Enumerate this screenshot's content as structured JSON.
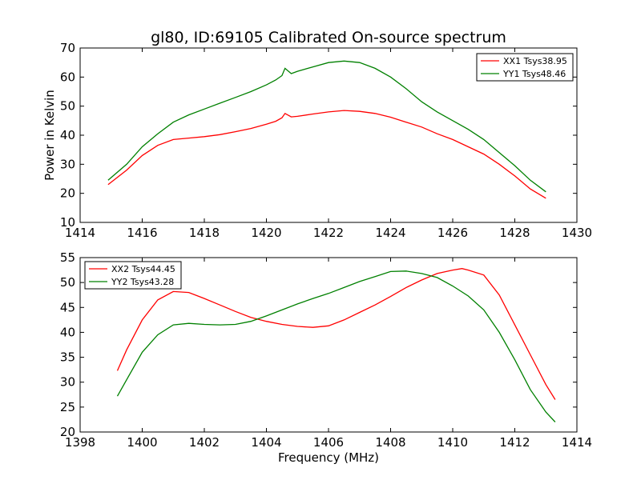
{
  "chart_data": [
    {
      "type": "line",
      "title": "gl80, ID:69105 Calibrated On-source spectrum",
      "xlabel": "",
      "ylabel": "Power in Kelvin",
      "xlim": [
        1414,
        1430
      ],
      "ylim": [
        10,
        70
      ],
      "xticks": [
        1414,
        1416,
        1418,
        1420,
        1422,
        1424,
        1426,
        1428,
        1430
      ],
      "yticks": [
        10,
        20,
        30,
        40,
        50,
        60,
        70
      ],
      "legend": "top-right",
      "series": [
        {
          "name": "XX1 Tsys38.95",
          "color": "#ff0000",
          "x": [
            1414.9,
            1415.5,
            1416.0,
            1416.5,
            1417.0,
            1417.5,
            1418.0,
            1418.5,
            1419.0,
            1419.5,
            1420.0,
            1420.3,
            1420.5,
            1420.6,
            1420.8,
            1421.0,
            1421.5,
            1422.0,
            1422.5,
            1423.0,
            1423.5,
            1424.0,
            1424.5,
            1425.0,
            1425.5,
            1426.0,
            1426.5,
            1427.0,
            1427.5,
            1428.0,
            1428.5,
            1429.0
          ],
          "y": [
            23,
            28,
            33,
            36.5,
            38.5,
            39,
            39.5,
            40.2,
            41.2,
            42.3,
            43.8,
            44.8,
            46,
            47.5,
            46.3,
            46.5,
            47.3,
            48,
            48.5,
            48.2,
            47.5,
            46.2,
            44.5,
            42.8,
            40.5,
            38.5,
            36,
            33.5,
            30,
            26,
            21.5,
            18.3
          ]
        },
        {
          "name": "YY1 Tsys48.46",
          "color": "#008000",
          "x": [
            1414.9,
            1415.5,
            1416.0,
            1416.5,
            1417.0,
            1417.5,
            1418.0,
            1418.5,
            1419.0,
            1419.5,
            1420.0,
            1420.3,
            1420.5,
            1420.6,
            1420.8,
            1421.0,
            1421.5,
            1422.0,
            1422.5,
            1423.0,
            1423.5,
            1424.0,
            1424.5,
            1425.0,
            1425.5,
            1426.0,
            1426.5,
            1427.0,
            1427.5,
            1428.0,
            1428.5,
            1429.0
          ],
          "y": [
            24.5,
            30,
            36,
            40.5,
            44.5,
            47,
            49,
            51,
            53,
            55,
            57.3,
            59,
            60.5,
            63,
            61.2,
            62,
            63.5,
            65,
            65.5,
            65,
            63,
            60,
            56,
            51.5,
            48,
            45,
            42,
            38.5,
            34,
            29.5,
            24.5,
            20.5
          ]
        }
      ]
    },
    {
      "type": "line",
      "title": "",
      "xlabel": "Frequency (MHz)",
      "ylabel": "",
      "xlim": [
        1398,
        1414
      ],
      "ylim": [
        20,
        55
      ],
      "xticks": [
        1398,
        1400,
        1402,
        1404,
        1406,
        1408,
        1410,
        1412,
        1414
      ],
      "yticks": [
        20,
        25,
        30,
        35,
        40,
        45,
        50,
        55
      ],
      "legend": "top-left",
      "series": [
        {
          "name": "XX2 Tsys44.45",
          "color": "#ff0000",
          "x": [
            1399.2,
            1399.5,
            1400.0,
            1400.5,
            1401.0,
            1401.5,
            1402.0,
            1402.5,
            1403.0,
            1403.5,
            1404.0,
            1404.5,
            1405.0,
            1405.5,
            1406.0,
            1406.5,
            1407.0,
            1407.5,
            1408.0,
            1408.5,
            1409.0,
            1409.5,
            1410.0,
            1410.3,
            1410.5,
            1411.0,
            1411.5,
            1412.0,
            1412.5,
            1413.0,
            1413.3
          ],
          "y": [
            32.3,
            36.5,
            42.5,
            46.5,
            48.2,
            48,
            46.8,
            45.5,
            44.2,
            43,
            42.2,
            41.6,
            41.2,
            41,
            41.3,
            42.5,
            44,
            45.5,
            47.2,
            49,
            50.5,
            51.8,
            52.5,
            52.8,
            52.5,
            51.5,
            47.5,
            41.5,
            35.5,
            29.5,
            26.5
          ]
        },
        {
          "name": "YY2 Tsys43.28",
          "color": "#008000",
          "x": [
            1399.2,
            1399.5,
            1400.0,
            1400.5,
            1401.0,
            1401.5,
            1402.0,
            1402.5,
            1403.0,
            1403.5,
            1404.0,
            1404.5,
            1405.0,
            1405.5,
            1406.0,
            1406.5,
            1407.0,
            1407.5,
            1408.0,
            1408.5,
            1409.0,
            1409.5,
            1410.0,
            1410.5,
            1411.0,
            1411.5,
            1412.0,
            1412.5,
            1413.0,
            1413.3
          ],
          "y": [
            27.2,
            30.5,
            36,
            39.5,
            41.5,
            41.8,
            41.6,
            41.5,
            41.6,
            42.2,
            43.3,
            44.5,
            45.7,
            46.8,
            47.8,
            49,
            50.2,
            51.2,
            52.2,
            52.3,
            51.8,
            51,
            49.3,
            47.3,
            44.5,
            40,
            34.5,
            28.5,
            24,
            22
          ]
        }
      ]
    }
  ]
}
